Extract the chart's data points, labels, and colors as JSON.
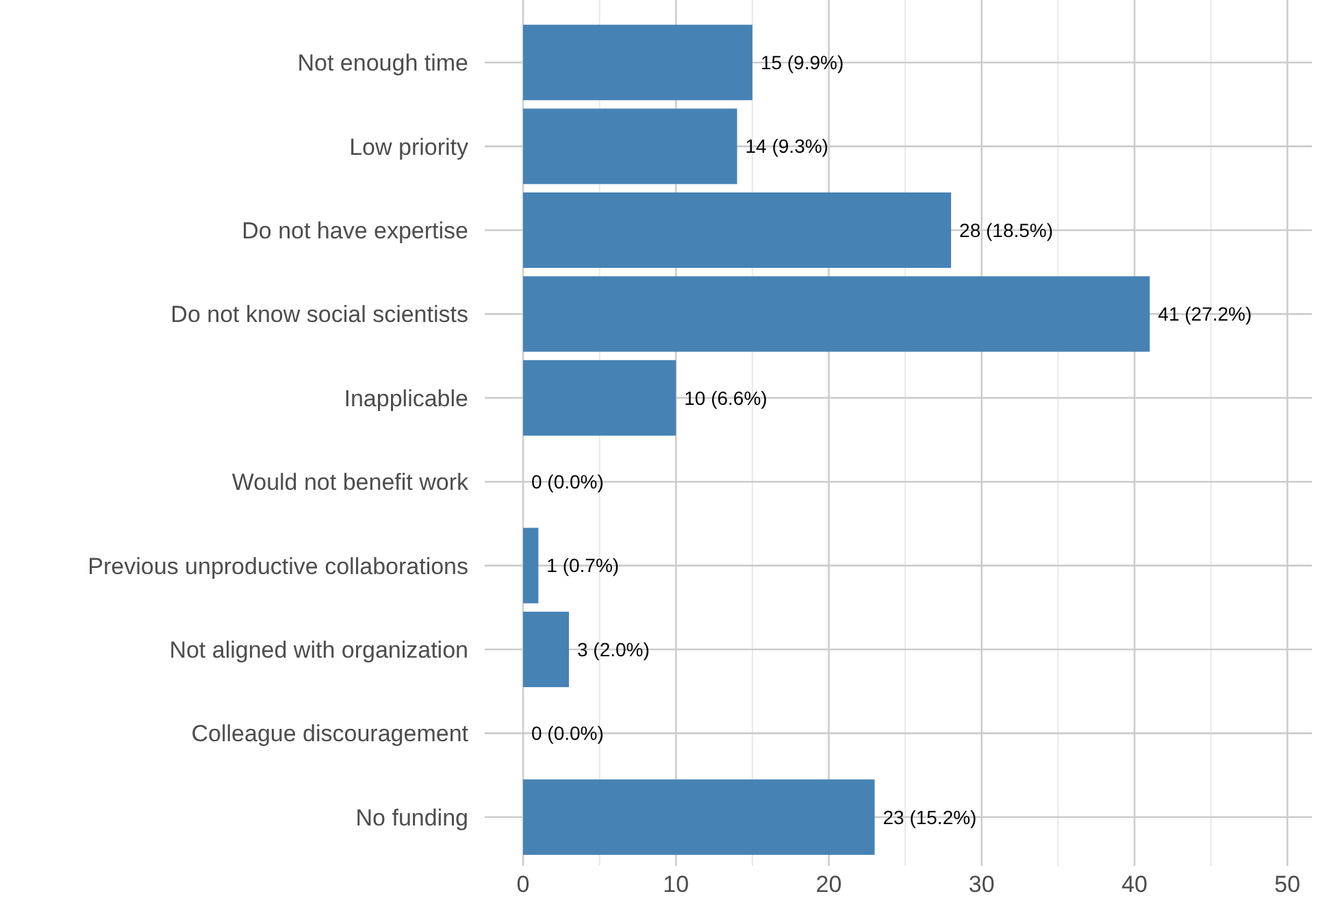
{
  "chart_data": {
    "type": "bar",
    "orientation": "horizontal",
    "categories": [
      "Not enough time",
      "Low priority",
      "Do not have expertise",
      "Do not know social scientists",
      "Inapplicable",
      "Would not benefit work",
      "Previous unproductive collaborations",
      "Not aligned with organization",
      "Colleague discouragement",
      "No funding"
    ],
    "values": [
      15,
      14,
      28,
      41,
      10,
      0,
      1,
      3,
      0,
      23
    ],
    "value_labels": [
      "15 (9.9%)",
      "14 (9.3%)",
      "28 (18.5%)",
      "41 (27.2%)",
      "10 (6.6%)",
      "0 (0.0%)",
      "1 (0.7%)",
      "3 (2.0%)",
      "0 (0.0%)",
      "23 (15.2%)"
    ],
    "color": "#4682b4",
    "xlim": [
      0,
      51.6
    ],
    "xticks": [
      0,
      {
        "value": 5,
        "label": null
      },
      10,
      {
        "value": 15,
        "label": null
      },
      20,
      {
        "value": 25,
        "label": null
      },
      30,
      {
        "value": 35,
        "label": null
      },
      40,
      {
        "value": 45,
        "label": null
      },
      50
    ],
    "grid": true
  }
}
